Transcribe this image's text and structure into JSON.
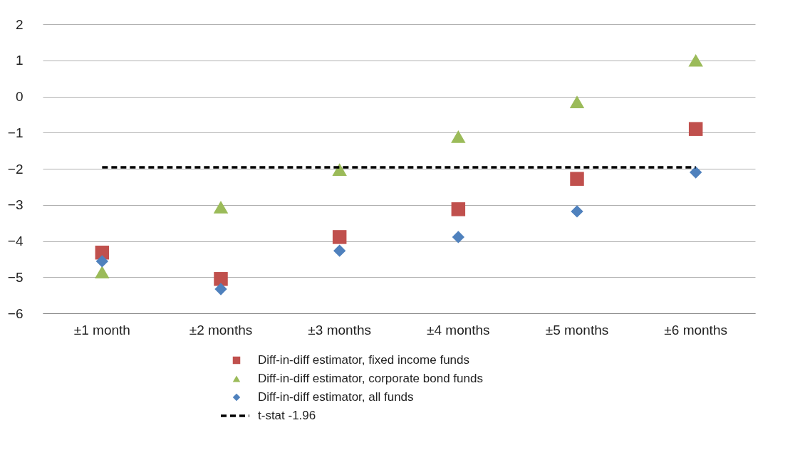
{
  "chart_data": {
    "type": "scatter",
    "categories": [
      "±1 month",
      "±2 months",
      "±3 months",
      "±4 months",
      "±5 months",
      "±6 months"
    ],
    "series": [
      {
        "name": "Diff-in-diff estimator, fixed income funds",
        "color": "#c0504d",
        "marker": "square",
        "values": [
          -4.32,
          -5.05,
          -3.89,
          -3.12,
          -2.28,
          -0.9
        ]
      },
      {
        "name": "Diff-in-diff estimator, corporate bond funds",
        "color": "#9bbb59",
        "marker": "triangle",
        "values": [
          -4.86,
          -3.06,
          -2.02,
          -1.11,
          -0.15,
          1.0
        ]
      },
      {
        "name": "Diff-in-diff estimator, all funds",
        "color": "#4f81bd",
        "marker": "diamond",
        "values": [
          -4.56,
          -5.33,
          -4.27,
          -3.89,
          -3.18,
          -2.1
        ]
      }
    ],
    "ref_lines": [
      {
        "axis": "y",
        "value": -1.96,
        "label": "t-stat -1.96",
        "color": "#000000",
        "line_style": "dashed"
      }
    ],
    "ylim": [
      -6,
      2
    ],
    "yticks": [
      -6,
      -5,
      -4,
      -3,
      -2,
      -1,
      0,
      1,
      2
    ],
    "grid": "y",
    "legend": "bottom"
  }
}
